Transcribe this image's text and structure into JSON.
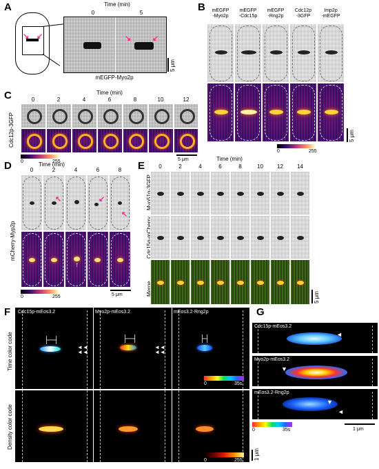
{
  "panel_labels": [
    "A",
    "B",
    "C",
    "D",
    "E",
    "F",
    "G"
  ],
  "panelA": {
    "time_label": "Time (min)",
    "times": [
      "0",
      "5"
    ],
    "protein": "mEGFP-Myo2p",
    "scale": "5 μm"
  },
  "panelB": {
    "columns": [
      "mEGFP\n-Myo2p",
      "mEGFP\n-Cdc15p",
      "mEGFP\n-Rng2p",
      "Cdc12p\n-3GFP",
      "Imp2p\n-mEGFP"
    ],
    "colorbar_min": "0",
    "colorbar_max": "255",
    "scale": "5 μm"
  },
  "panelC": {
    "time_label": "Time (min)",
    "times": [
      "0",
      "2",
      "4",
      "6",
      "8",
      "10",
      "12"
    ],
    "protein": "Cdc12p-3GFP",
    "colorbar_min": "0",
    "colorbar_max": "255",
    "scale": "5 μm"
  },
  "panelD": {
    "time_label": "Time (min)",
    "times": [
      "0",
      "2",
      "4",
      "6",
      "8"
    ],
    "protein": "mCherry-Myp2p",
    "colorbar_min": "0",
    "colorbar_max": "255",
    "scale": "5 μm"
  },
  "panelE": {
    "time_label": "Time (min)",
    "times": [
      "0",
      "2",
      "4",
      "6",
      "8",
      "10",
      "12",
      "14"
    ],
    "rows": [
      "Myo51p-3GFP",
      "Cdc15p-mCherry",
      "Merge"
    ],
    "scale": "5 μm"
  },
  "panelF": {
    "columns": [
      "Cdc15p-mEos3.2",
      "Myo2p-mEos3.2",
      "mEos3.2-Rng2p"
    ],
    "row_time": "Time color code",
    "row_density": "Density color code",
    "time_bar_min": "0",
    "time_bar_max": "35s",
    "density_bar_min": "0",
    "density_bar_max": "255",
    "scale": "1 μm"
  },
  "panelG": {
    "rows": [
      "Cdc15p-mEos3.2",
      "Myo2p-mEos3.2",
      "mEos3.2-Rng2p"
    ],
    "time_bar_min": "0",
    "time_bar_max": "35s",
    "scale": "1 μm"
  },
  "colors": {
    "arrow": "#ff2a8a",
    "heat_background": "#3a0f6e"
  }
}
